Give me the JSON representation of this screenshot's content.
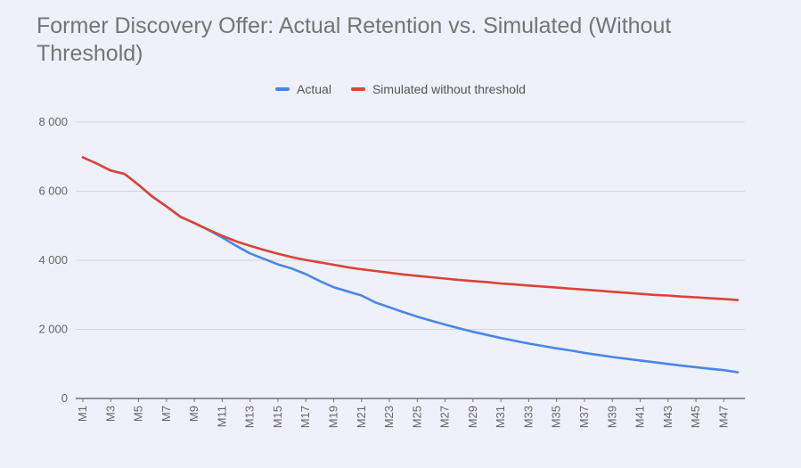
{
  "chart_data": {
    "type": "line",
    "title": "Former Discovery Offer: Actual Retention vs. Simulated (Without Threshold)",
    "xlabel": "",
    "ylabel": "",
    "ylim": [
      0,
      8000
    ],
    "yticks": [
      "0",
      "2 000",
      "4 000",
      "6 000",
      "8 000"
    ],
    "ytick_values": [
      0,
      2000,
      4000,
      6000,
      8000
    ],
    "grid": true,
    "legend_position": "top-center",
    "categories": [
      "M1",
      "M2",
      "M3",
      "M4",
      "M5",
      "M6",
      "M7",
      "M8",
      "M9",
      "M10",
      "M11",
      "M12",
      "M13",
      "M14",
      "M15",
      "M16",
      "M17",
      "M18",
      "M19",
      "M20",
      "M21",
      "M22",
      "M23",
      "M24",
      "M25",
      "M26",
      "M27",
      "M28",
      "M29",
      "M30",
      "M31",
      "M32",
      "M33",
      "M34",
      "M35",
      "M36",
      "M37",
      "M38",
      "M39",
      "M40",
      "M41",
      "M42",
      "M43",
      "M44",
      "M45",
      "M46",
      "M47",
      "M48"
    ],
    "xtick_labels": [
      "M1",
      "M3",
      "M5",
      "M7",
      "M9",
      "M11",
      "M13",
      "M15",
      "M17",
      "M19",
      "M21",
      "M23",
      "M25",
      "M27",
      "M29",
      "M31",
      "M33",
      "M35",
      "M37",
      "M39",
      "M41",
      "M43",
      "M45",
      "M47"
    ],
    "series": [
      {
        "name": "Actual",
        "color": "#4a86e8",
        "values": [
          6980,
          6800,
          6600,
          6500,
          6180,
          5840,
          5560,
          5260,
          5080,
          4880,
          4660,
          4420,
          4200,
          4040,
          3880,
          3760,
          3600,
          3400,
          3220,
          3100,
          2980,
          2780,
          2640,
          2500,
          2370,
          2250,
          2140,
          2030,
          1930,
          1840,
          1750,
          1670,
          1590,
          1520,
          1450,
          1390,
          1320,
          1260,
          1200,
          1150,
          1100,
          1050,
          1000,
          950,
          905,
          860,
          820,
          760
        ]
      },
      {
        "name": "Simulated without threshold",
        "color": "#db4437",
        "values": [
          6980,
          6800,
          6600,
          6500,
          6180,
          5840,
          5560,
          5260,
          5080,
          4890,
          4710,
          4550,
          4420,
          4300,
          4190,
          4090,
          4010,
          3940,
          3870,
          3800,
          3740,
          3690,
          3640,
          3590,
          3550,
          3510,
          3470,
          3430,
          3400,
          3370,
          3330,
          3300,
          3270,
          3240,
          3210,
          3180,
          3150,
          3120,
          3090,
          3060,
          3030,
          3000,
          2980,
          2950,
          2930,
          2900,
          2880,
          2850
        ]
      }
    ]
  }
}
